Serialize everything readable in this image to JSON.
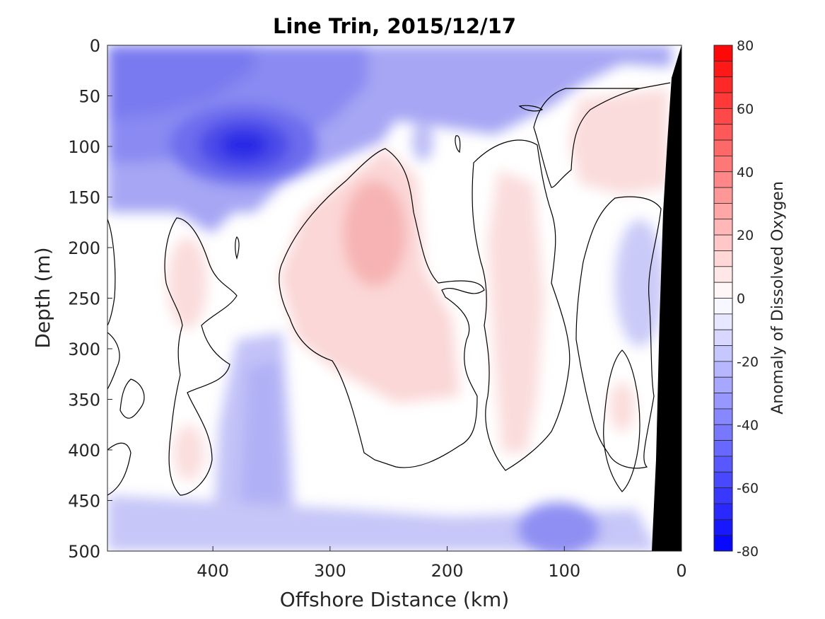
{
  "chart_data": {
    "type": "heatmap",
    "title": "Line Trin, 2015/12/17",
    "xlabel": "Offshore Distance (km)",
    "ylabel": "Depth (m)",
    "colorbar_label": "Anomaly of Dissolved Oxygen",
    "xlim": [
      490,
      0
    ],
    "ylim": [
      0,
      500
    ],
    "x_ticks": [
      400,
      300,
      200,
      100,
      0
    ],
    "y_ticks": [
      0,
      50,
      100,
      150,
      200,
      250,
      300,
      350,
      400,
      450,
      500
    ],
    "color_range": [
      -80,
      80
    ],
    "colorbar_ticks": [
      80,
      60,
      40,
      20,
      0,
      -20,
      -40,
      -60,
      -80
    ],
    "contour_interval": 5,
    "zero_contour": true,
    "colormap": {
      "negative": "#0000ff",
      "zero": "#ffffff",
      "positive": "#ff0000"
    },
    "land_mask_color": "#000000",
    "features": [
      {
        "label": "O2 minimum core",
        "x_km": 375,
        "depth_m": 100,
        "value": -50
      },
      {
        "label": "negative surface layer",
        "x_km": 420,
        "depth_m": 40,
        "value": -28
      },
      {
        "label": "positive lens",
        "x_km": 260,
        "depth_m": 190,
        "value": 17
      },
      {
        "label": "positive lens",
        "x_km": 425,
        "depth_m": 240,
        "value": 8
      },
      {
        "label": "positive lens",
        "x_km": 138,
        "depth_m": 300,
        "value": 9
      },
      {
        "label": "positive nearshore",
        "x_km": 70,
        "depth_m": 110,
        "value": 8
      },
      {
        "label": "negative column",
        "x_km": 360,
        "depth_m": 420,
        "value": -15
      },
      {
        "label": "negative bottom",
        "x_km": 110,
        "depth_m": 480,
        "value": -32
      },
      {
        "label": "negative offshore mid",
        "x_km": 45,
        "depth_m": 240,
        "value": -12
      },
      {
        "label": "small negative",
        "x_km": 220,
        "depth_m": 95,
        "value": -14
      }
    ]
  }
}
